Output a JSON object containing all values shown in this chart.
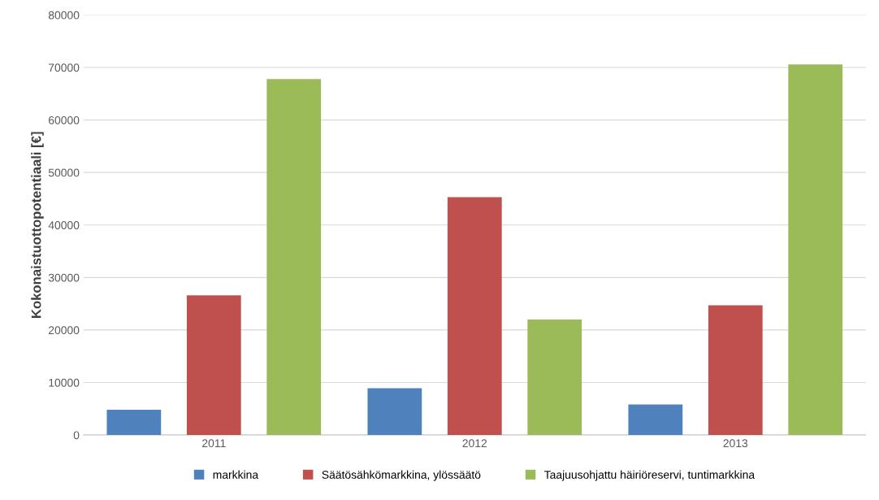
{
  "chart_data": {
    "type": "bar",
    "ylabel": "Kokonaistuottopotentiaali [€]",
    "categories": [
      "2011",
      "2012",
      "2013"
    ],
    "series": [
      {
        "name": "markkina",
        "color": "#4f81bd",
        "values": [
          4800,
          8900,
          5800
        ]
      },
      {
        "name": "Säätösähkömarkkina, ylössäätö",
        "color": "#c0504d",
        "values": [
          26600,
          45300,
          24700
        ]
      },
      {
        "name": "Taajuusohjattu häiriöreservi, tuntimarkkina",
        "color": "#9bbb59",
        "values": [
          67800,
          22000,
          70600
        ]
      }
    ],
    "ylim": [
      0,
      80000
    ],
    "yticks": [
      0,
      10000,
      20000,
      30000,
      40000,
      50000,
      60000,
      70000,
      80000
    ],
    "grid": "y",
    "legend": "bottom"
  }
}
